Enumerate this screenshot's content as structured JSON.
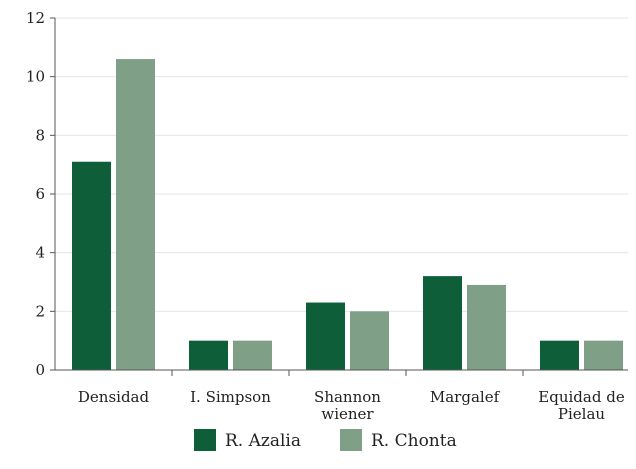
{
  "chart_data": {
    "type": "bar",
    "title": "",
    "xlabel": "",
    "ylabel": "",
    "categories": [
      [
        "Densidad"
      ],
      [
        "I. Simpson"
      ],
      [
        "Shannon",
        "wiener"
      ],
      [
        "Margalef"
      ],
      [
        "Equidad de",
        "Pielau"
      ]
    ],
    "series": [
      {
        "name": "R. Azalia",
        "color": "#0e5e3a",
        "values": [
          7.1,
          1.0,
          2.3,
          3.2,
          1.0
        ]
      },
      {
        "name": "R. Chonta",
        "color": "#7f9f86",
        "values": [
          10.6,
          1.0,
          2.0,
          2.9,
          1.0
        ]
      }
    ],
    "ylim": [
      0,
      12
    ],
    "yticks": [
      0,
      2,
      4,
      6,
      8,
      10,
      12
    ],
    "grid": true,
    "legend_position": "bottom"
  }
}
